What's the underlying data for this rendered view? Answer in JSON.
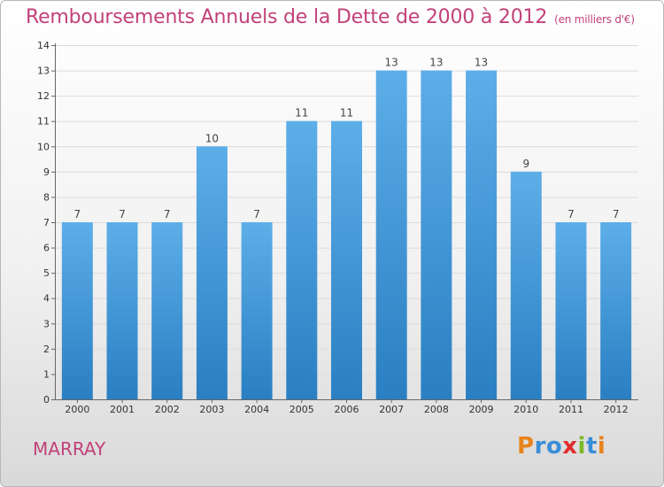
{
  "header": {
    "title": "Remboursements Annuels de la Dette de 2000 à 2012",
    "unit": "(en milliers d'€)"
  },
  "commune": "MARRAY",
  "logo": {
    "letters": [
      "P",
      "r",
      "o",
      "x",
      "i",
      "t",
      "i"
    ]
  },
  "chart_data": {
    "type": "bar",
    "categories": [
      "2000",
      "2001",
      "2002",
      "2003",
      "2004",
      "2005",
      "2006",
      "2007",
      "2008",
      "2009",
      "2010",
      "2011",
      "2012"
    ],
    "values": [
      7,
      7,
      7,
      10,
      7,
      11,
      11,
      13,
      13,
      13,
      9,
      7,
      7
    ],
    "value_labels": [
      "7",
      "7",
      "7",
      "10",
      "7",
      "11",
      "11",
      "13",
      "13",
      "13",
      "9",
      "7",
      "7"
    ],
    "ylim": [
      0,
      14
    ],
    "y_ticks": [
      0,
      1,
      2,
      3,
      4,
      5,
      6,
      7,
      8,
      9,
      10,
      11,
      12,
      13,
      14
    ],
    "y_tick_labels": [
      "0",
      "1",
      "2",
      "3",
      "4",
      "5",
      "6",
      "7",
      "8",
      "9",
      "10",
      "11",
      "12",
      "13",
      "14"
    ],
    "grid": "horizontal",
    "bar_color_top": "#5daee8",
    "bar_color_bottom": "#2a7fc2"
  }
}
